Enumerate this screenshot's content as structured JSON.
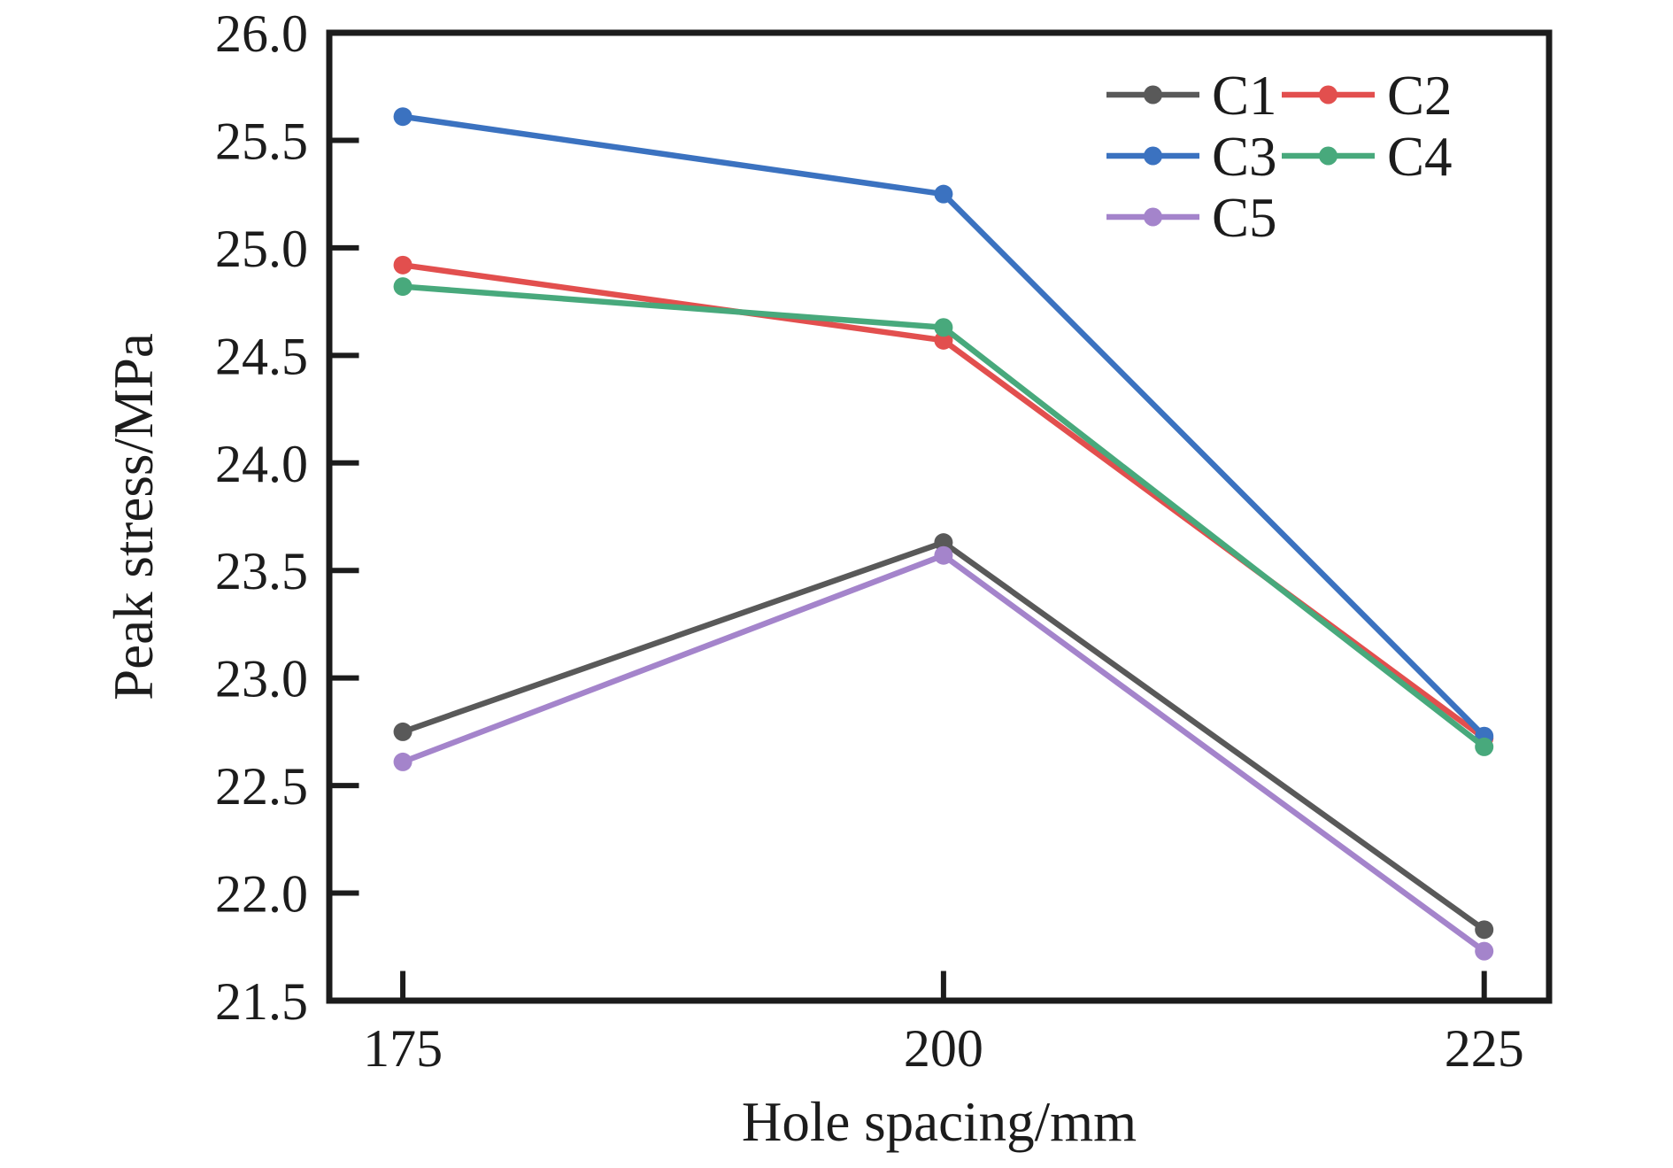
{
  "chart_data": {
    "type": "line",
    "title": "",
    "xlabel": "Hole spacing/mm",
    "ylabel": "Peak stress/MPa",
    "x": [
      175,
      200,
      225
    ],
    "x_tick_labels": [
      "175",
      "200",
      "225"
    ],
    "xlim": [
      171.6,
      228.0
    ],
    "ylim": [
      21.5,
      26.0
    ],
    "y_tick_step": 0.5,
    "y_tick_decimals": 1,
    "grid": false,
    "marker": "circle",
    "axis_color": "#1c1c1c",
    "background_color": "#ffffff",
    "series": [
      {
        "name": "C1",
        "color": "#595959",
        "values": [
          22.75,
          23.63,
          21.83
        ]
      },
      {
        "name": "C2",
        "color": "#e24f4e",
        "values": [
          24.92,
          24.57,
          22.72
        ]
      },
      {
        "name": "C3",
        "color": "#3b72c0",
        "values": [
          25.61,
          25.25,
          22.73
        ]
      },
      {
        "name": "C4",
        "color": "#48a97c",
        "values": [
          24.82,
          24.63,
          22.68
        ]
      },
      {
        "name": "C5",
        "color": "#a484cb",
        "values": [
          22.61,
          23.57,
          21.73
        ]
      }
    ],
    "legend": {
      "position": "top-right",
      "columns": 2,
      "frame": false,
      "entries": [
        "C1",
        "C2",
        "C3",
        "C4",
        "C5"
      ]
    }
  }
}
